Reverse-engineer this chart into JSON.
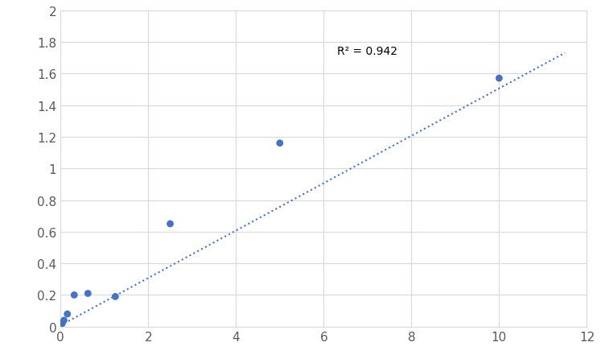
{
  "x": [
    0.039,
    0.078,
    0.156,
    0.3125,
    0.625,
    1.25,
    2.5,
    5.0,
    10.0
  ],
  "y": [
    0.02,
    0.04,
    0.08,
    0.2,
    0.21,
    0.19,
    0.65,
    1.16,
    1.57
  ],
  "trendline_x": [
    0.0,
    11.5
  ],
  "trendline_y": [
    0.008,
    1.73
  ],
  "r_squared": "R² = 0.942",
  "r_squared_x": 6.3,
  "r_squared_y": 1.78,
  "xlim": [
    0,
    12
  ],
  "ylim": [
    0,
    2
  ],
  "xticks": [
    0,
    2,
    4,
    6,
    8,
    10,
    12
  ],
  "yticks": [
    0,
    0.2,
    0.4,
    0.6,
    0.8,
    1.0,
    1.2,
    1.4,
    1.6,
    1.8,
    2.0
  ],
  "ytick_labels": [
    "0",
    "0.2",
    "0.4",
    "0.6",
    "0.8",
    "1",
    "1.2",
    "1.4",
    "1.6",
    "1.8",
    "2"
  ],
  "dot_color": "#4472C4",
  "trendline_color": "#4472C4",
  "background_color": "#ffffff",
  "grid_color": "#d9d9d9",
  "marker_size": 40,
  "tick_labelsize": 11
}
